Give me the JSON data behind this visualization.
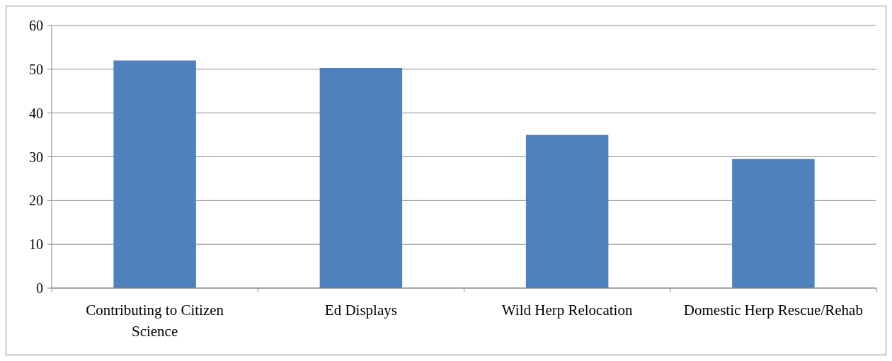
{
  "chart_data": {
    "type": "bar",
    "categories": [
      "Contributing to Citizen Science",
      "Ed Displays",
      "Wild Herp Relocation",
      "Domestic Herp Rescue/Rehab"
    ],
    "values": [
      52,
      50.3,
      35,
      29.5
    ],
    "color": "#4f81bd",
    "ylim": [
      0,
      60
    ],
    "yticks": [
      0,
      10,
      20,
      30,
      40,
      50,
      60
    ],
    "grid": "y"
  }
}
